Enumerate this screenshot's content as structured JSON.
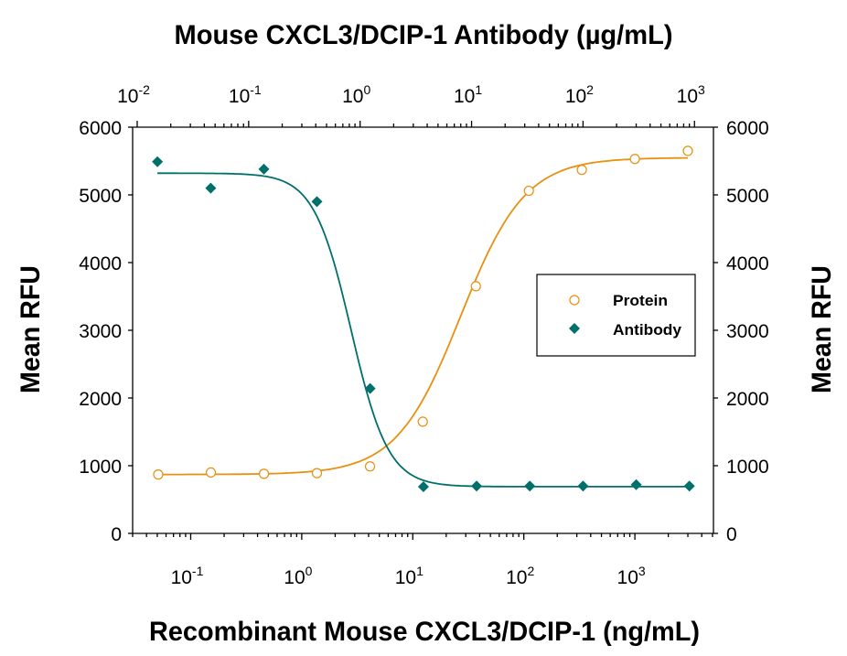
{
  "chart_data": {
    "type": "scatter",
    "title": "Mouse CXCL3/DCIP-1 Antibody (µg/mL)",
    "xlabel": "Recombinant Mouse CXCL3/DCIP-1 (ng/mL)",
    "ylabel": "Mean RFU",
    "ylabel_right": "Mean RFU",
    "x_scale": "log",
    "xlim": [
      0.03,
      5100
    ],
    "x_top_scale": "log",
    "x_top_lim": [
      0.0091,
      1480
    ],
    "ylim": [
      0,
      6000
    ],
    "yticks": [
      "0",
      "1000",
      "2000",
      "3000",
      "4000",
      "5000",
      "6000"
    ],
    "xticks_bottom": [
      {
        "base": "10",
        "exp": "-1"
      },
      {
        "base": "10",
        "exp": "0"
      },
      {
        "base": "10",
        "exp": "1"
      },
      {
        "base": "10",
        "exp": "2"
      },
      {
        "base": "10",
        "exp": "3"
      }
    ],
    "xticks_top": [
      {
        "base": "10",
        "exp": "-2"
      },
      {
        "base": "10",
        "exp": "-1"
      },
      {
        "base": "10",
        "exp": "0"
      },
      {
        "base": "10",
        "exp": "1"
      },
      {
        "base": "10",
        "exp": "2"
      },
      {
        "base": "10",
        "exp": "3"
      }
    ],
    "grid": false,
    "legend_position": "center-right",
    "series": [
      {
        "name": "Protein",
        "axis": "bottom",
        "marker": "open-circle",
        "color": "#E8900F",
        "x": [
          0.051,
          0.152,
          0.457,
          1.37,
          4.12,
          12.3,
          37,
          111,
          333,
          1000,
          3000
        ],
        "y": [
          870,
          900,
          880,
          890,
          990,
          1650,
          3650,
          5060,
          5370,
          5530,
          5650
        ],
        "fit": {
          "bottom": 870,
          "top": 5550,
          "ec50": 27,
          "hill": 1.5
        }
      },
      {
        "name": "Antibody",
        "axis": "top",
        "marker": "filled-diamond",
        "color": "#00706A",
        "x": [
          0.0152,
          0.0457,
          0.137,
          0.41,
          1.23,
          3.7,
          11.1,
          33.3,
          100,
          300,
          900
        ],
        "y": [
          5490,
          5100,
          5380,
          4900,
          2140,
          690,
          700,
          700,
          700,
          720,
          700
        ],
        "fit": {
          "bottom": 690,
          "top": 5320,
          "ec50": 0.83,
          "hill": -2.6
        }
      }
    ]
  }
}
